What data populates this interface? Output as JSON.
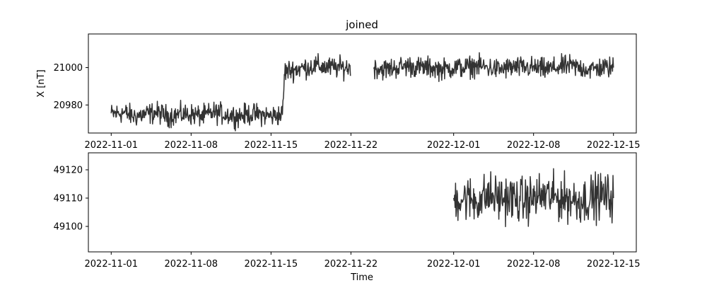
{
  "chart_data": [
    {
      "type": "line",
      "title": "joined",
      "xlabel": "",
      "ylabel": "X [nT]",
      "xlim": [
        "2022-10-30",
        "2022-12-17"
      ],
      "ylim": [
        20965,
        21018
      ],
      "yticks": [
        20980,
        21000
      ],
      "xticks": [
        "2022-11-01",
        "2022-11-08",
        "2022-11-15",
        "2022-11-22",
        "2022-12-01",
        "2022-12-08",
        "2022-12-15"
      ],
      "color": "#333333",
      "grid": false,
      "series": [
        {
          "x_start": "2022-11-01",
          "x_end": "2022-12-15",
          "points": [
            [
              "2022-11-01",
              20975
            ],
            [
              "2022-11-02",
              20976
            ],
            [
              "2022-11-03",
              20974
            ],
            [
              "2022-11-04",
              20975
            ],
            [
              "2022-11-05",
              20976
            ],
            [
              "2022-11-06",
              20974
            ],
            [
              "2022-11-07",
              20975
            ],
            [
              "2022-11-08",
              20975
            ],
            [
              "2022-11-09",
              20974
            ],
            [
              "2022-11-10",
              20976
            ],
            [
              "2022-11-11",
              20975
            ],
            [
              "2022-11-12",
              20974
            ],
            [
              "2022-11-13",
              20975
            ],
            [
              "2022-11-14",
              20975
            ],
            [
              "2022-11-15",
              20974
            ],
            [
              "2022-11-16",
              20975
            ],
            [
              "2022-11-16.2",
              20998
            ],
            [
              "2022-11-17",
              20999
            ],
            [
              "2022-11-18",
              21000
            ],
            [
              "2022-11-19",
              21001
            ],
            [
              "2022-11-20",
              21000
            ],
            [
              "2022-11-21",
              21000
            ],
            [
              "2022-11-22",
              21000
            ],
            [
              "2022-11-24",
              21000
            ],
            [
              "2022-11-25",
              20999
            ],
            [
              "2022-11-26",
              21000
            ],
            [
              "2022-11-27",
              21001
            ],
            [
              "2022-11-28",
              21000
            ],
            [
              "2022-11-29",
              21000
            ],
            [
              "2022-11-30",
              20999
            ],
            [
              "2022-12-01",
              21000
            ],
            [
              "2022-12-02",
              21000
            ],
            [
              "2022-12-03",
              21001
            ],
            [
              "2022-12-04",
              21000
            ],
            [
              "2022-12-05",
              20999
            ],
            [
              "2022-12-06",
              21000
            ],
            [
              "2022-12-07",
              21000
            ],
            [
              "2022-12-08",
              21000
            ],
            [
              "2022-12-09",
              20999
            ],
            [
              "2022-12-10",
              21000
            ],
            [
              "2022-12-11",
              21001
            ],
            [
              "2022-12-12",
              21000
            ],
            [
              "2022-12-13",
              20999
            ],
            [
              "2022-12-14",
              21000
            ],
            [
              "2022-12-15",
              21000
            ]
          ],
          "gap": [
            "2022-11-22",
            "2022-11-24"
          ],
          "noise_amplitude": 3.5
        }
      ]
    },
    {
      "type": "line",
      "title": "",
      "xlabel": "Time",
      "ylabel": "",
      "xlim": [
        "2022-10-30",
        "2022-12-17"
      ],
      "ylim": [
        49091,
        49126
      ],
      "yticks": [
        49100,
        49110,
        49120
      ],
      "xticks": [
        "2022-11-01",
        "2022-11-08",
        "2022-11-15",
        "2022-11-22",
        "2022-12-01",
        "2022-12-08",
        "2022-12-15"
      ],
      "color": "#333333",
      "grid": false,
      "series": [
        {
          "x_start": "2022-12-01",
          "x_end": "2022-12-15",
          "points": [
            [
              "2022-12-01",
              49110
            ],
            [
              "2022-12-02",
              49110
            ],
            [
              "2022-12-03",
              49109
            ],
            [
              "2022-12-04",
              49111
            ],
            [
              "2022-12-05",
              49110
            ],
            [
              "2022-12-06",
              49110
            ],
            [
              "2022-12-07",
              49109
            ],
            [
              "2022-12-08",
              49110
            ],
            [
              "2022-12-09",
              49111
            ],
            [
              "2022-12-10",
              49110
            ],
            [
              "2022-12-11",
              49110
            ],
            [
              "2022-12-12",
              49109
            ],
            [
              "2022-12-13",
              49110
            ],
            [
              "2022-12-14",
              49111
            ],
            [
              "2022-12-15",
              49110
            ]
          ],
          "noise_amplitude": 5
        }
      ]
    }
  ]
}
